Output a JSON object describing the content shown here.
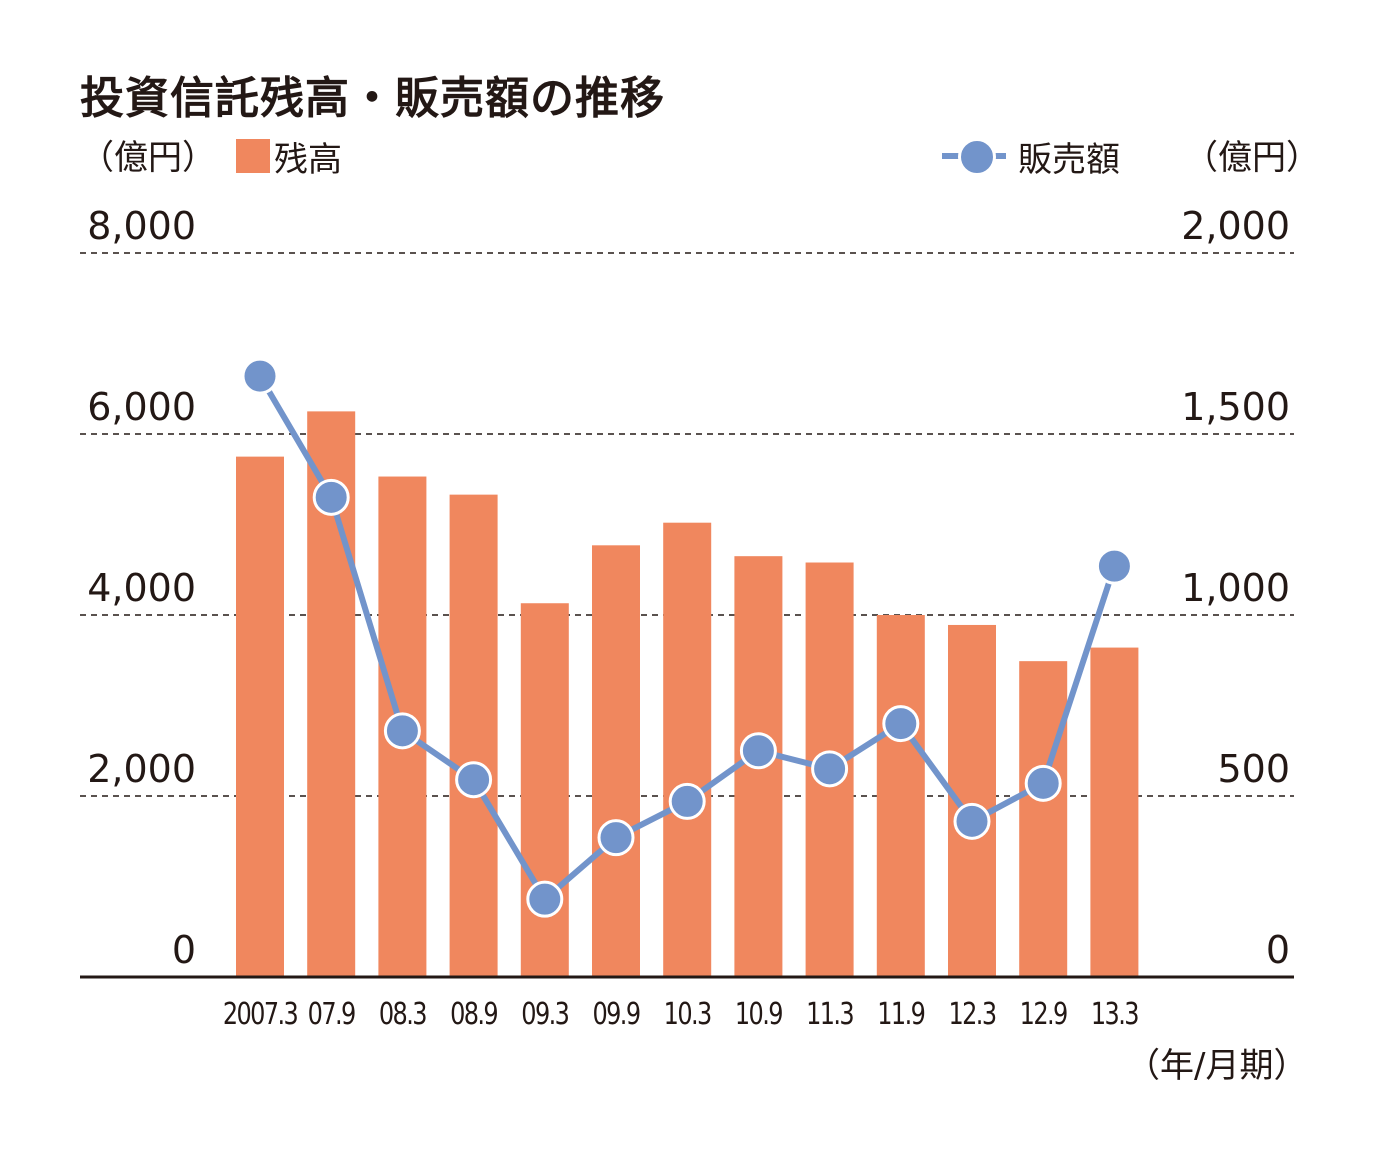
{
  "title": "投資信託残高・販売額の推移",
  "left_unit": "（億円）",
  "right_unit": "（億円）",
  "x_unit": "（年/月期）",
  "colors": {
    "bar": "#f0875e",
    "line": "#7294cb",
    "axis": "#231815",
    "grid": "#231815"
  },
  "chart_data": {
    "type": "bar",
    "title": "投資信託残高・販売額の推移",
    "categories": [
      "2007.3",
      "07.9",
      "08.3",
      "08.9",
      "09.3",
      "09.9",
      "10.3",
      "10.9",
      "11.3",
      "11.9",
      "12.3",
      "12.9",
      "13.3"
    ],
    "series": [
      {
        "name": "残高",
        "type": "bar",
        "axis": "left",
        "values": [
          5750,
          6250,
          5530,
          5330,
          4130,
          4770,
          5020,
          4650,
          4580,
          4000,
          3890,
          3490,
          3640
        ]
      },
      {
        "name": "販売額",
        "type": "line",
        "axis": "right",
        "values": [
          1660,
          1325,
          680,
          545,
          215,
          385,
          485,
          625,
          575,
          700,
          430,
          535,
          1135
        ]
      }
    ],
    "y_left": {
      "lim": [
        0,
        8000
      ],
      "ticks": [
        "0",
        "2,000",
        "4,000",
        "6,000",
        "8,000"
      ]
    },
    "y_right": {
      "lim": [
        0,
        2000
      ],
      "ticks": [
        "0",
        "500",
        "1,000",
        "1,500",
        "2,000"
      ]
    },
    "grid": true,
    "legend": "top"
  }
}
